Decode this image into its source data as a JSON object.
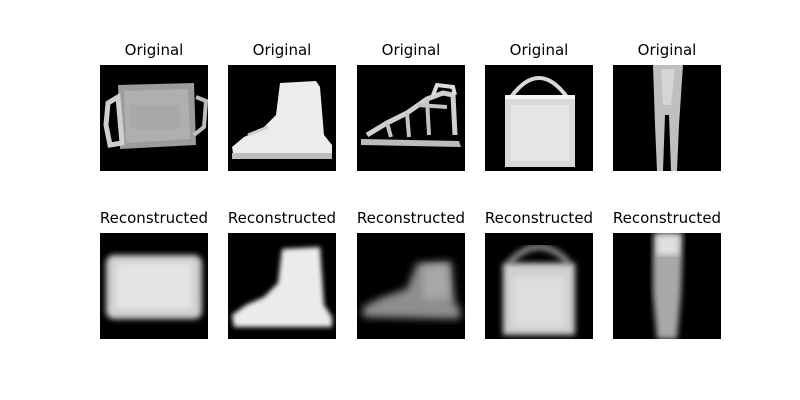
{
  "figure": {
    "rows": [
      {
        "row_label": "Original",
        "items": [
          {
            "title": "Original",
            "depicts": "bag-icon"
          },
          {
            "title": "Original",
            "depicts": "ankle-boot-icon"
          },
          {
            "title": "Original",
            "depicts": "sandal-icon"
          },
          {
            "title": "Original",
            "depicts": "bag-icon"
          },
          {
            "title": "Original",
            "depicts": "trouser-icon"
          }
        ]
      },
      {
        "row_label": "Reconstructed",
        "items": [
          {
            "title": "Reconstructed",
            "depicts": "bag-icon"
          },
          {
            "title": "Reconstructed",
            "depicts": "ankle-boot-icon"
          },
          {
            "title": "Reconstructed",
            "depicts": "ankle-boot-icon"
          },
          {
            "title": "Reconstructed",
            "depicts": "bag-icon"
          },
          {
            "title": "Reconstructed",
            "depicts": "trouser-icon"
          }
        ]
      }
    ],
    "colors": {
      "background": "#ffffff",
      "image_background": "#000000",
      "foreground_light": "#e8e8e8",
      "foreground_mid": "#a8a8a8"
    }
  }
}
